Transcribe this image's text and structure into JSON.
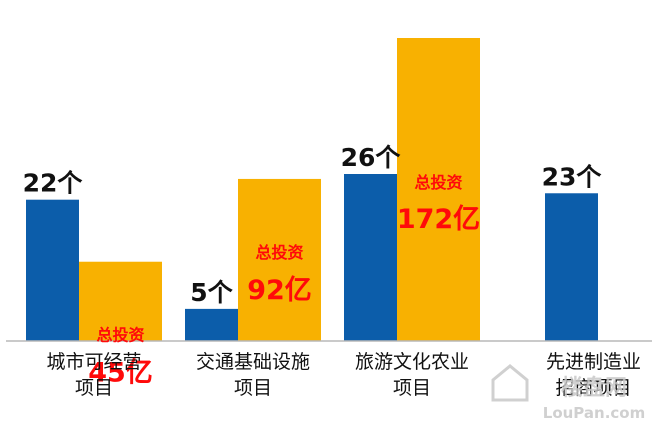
{
  "chart_data": {
    "type": "bar",
    "categories": [
      [
        "城市可经营",
        "项目"
      ],
      [
        "交通基础设施",
        "项目"
      ],
      [
        "旅游文化农业",
        "项目"
      ],
      [
        "先进制造业",
        "招商项目"
      ]
    ],
    "series": [
      {
        "values": [
          22,
          5,
          26,
          23
        ],
        "labels": [
          "22个",
          "5个",
          "26个",
          "23个"
        ],
        "color": "#0c5daa"
      },
      {
        "values": [
          45,
          92,
          172,
          null
        ],
        "label_prefix": "总投资",
        "labels": [
          "45亿",
          "92亿",
          "172亿",
          ""
        ],
        "color": "#f8b101",
        "label_color": "#ff0a0a"
      }
    ],
    "legend": "none",
    "grid": false
  },
  "watermark": {
    "brand": "楼盘网",
    "site": "LouPan.com"
  }
}
